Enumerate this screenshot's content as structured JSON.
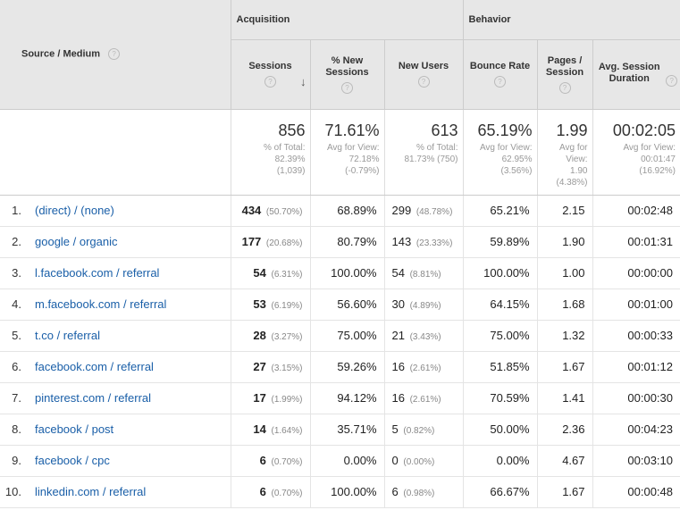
{
  "header": {
    "source_medium": "Source / Medium",
    "groups": {
      "acquisition": "Acquisition",
      "behavior": "Behavior"
    },
    "columns": {
      "sessions": "Sessions",
      "new_sessions": "% New Sessions",
      "new_users": "New Users",
      "bounce_rate": "Bounce Rate",
      "pages_session": "Pages / Session",
      "avg_duration": "Avg. Session Duration"
    },
    "help_glyph": "?",
    "sort_glyph": "↓"
  },
  "totals": {
    "sessions": {
      "value": "856",
      "sub1": "% of Total:",
      "sub2": "82.39%",
      "sub3": "(1,039)"
    },
    "new_sessions": {
      "value": "71.61%",
      "sub1": "Avg for View:",
      "sub2": "72.18%",
      "sub3": "(-0.79%)"
    },
    "new_users": {
      "value": "613",
      "sub1": "% of Total:",
      "sub2": "81.73% (750)"
    },
    "bounce_rate": {
      "value": "65.19%",
      "sub1": "Avg for View:",
      "sub2": "62.95%",
      "sub3": "(3.56%)"
    },
    "pages_session": {
      "value": "1.99",
      "sub1": "Avg for",
      "sub2": "View:",
      "sub3": "1.90",
      "sub4": "(4.38%)"
    },
    "avg_duration": {
      "value": "00:02:05",
      "sub1": "Avg for View:",
      "sub2": "00:01:47",
      "sub3": "(16.92%)"
    }
  },
  "rows": [
    {
      "index": "1.",
      "source": "(direct) / (none)",
      "sessions": "434",
      "sessions_pct": "(50.70%)",
      "new_sessions": "68.89%",
      "new_users": "299",
      "new_users_pct": "(48.78%)",
      "bounce_rate": "65.21%",
      "pages_session": "2.15",
      "avg_duration": "00:02:48"
    },
    {
      "index": "2.",
      "source": "google / organic",
      "sessions": "177",
      "sessions_pct": "(20.68%)",
      "new_sessions": "80.79%",
      "new_users": "143",
      "new_users_pct": "(23.33%)",
      "bounce_rate": "59.89%",
      "pages_session": "1.90",
      "avg_duration": "00:01:31"
    },
    {
      "index": "3.",
      "source": "l.facebook.com / referral",
      "sessions": "54",
      "sessions_pct": "(6.31%)",
      "new_sessions": "100.00%",
      "new_users": "54",
      "new_users_pct": "(8.81%)",
      "bounce_rate": "100.00%",
      "pages_session": "1.00",
      "avg_duration": "00:00:00"
    },
    {
      "index": "4.",
      "source": "m.facebook.com / referral",
      "sessions": "53",
      "sessions_pct": "(6.19%)",
      "new_sessions": "56.60%",
      "new_users": "30",
      "new_users_pct": "(4.89%)",
      "bounce_rate": "64.15%",
      "pages_session": "1.68",
      "avg_duration": "00:01:00"
    },
    {
      "index": "5.",
      "source": "t.co / referral",
      "sessions": "28",
      "sessions_pct": "(3.27%)",
      "new_sessions": "75.00%",
      "new_users": "21",
      "new_users_pct": "(3.43%)",
      "bounce_rate": "75.00%",
      "pages_session": "1.32",
      "avg_duration": "00:00:33"
    },
    {
      "index": "6.",
      "source": "facebook.com / referral",
      "sessions": "27",
      "sessions_pct": "(3.15%)",
      "new_sessions": "59.26%",
      "new_users": "16",
      "new_users_pct": "(2.61%)",
      "bounce_rate": "51.85%",
      "pages_session": "1.67",
      "avg_duration": "00:01:12"
    },
    {
      "index": "7.",
      "source": "pinterest.com / referral",
      "sessions": "17",
      "sessions_pct": "(1.99%)",
      "new_sessions": "94.12%",
      "new_users": "16",
      "new_users_pct": "(2.61%)",
      "bounce_rate": "70.59%",
      "pages_session": "1.41",
      "avg_duration": "00:00:30"
    },
    {
      "index": "8.",
      "source": "facebook / post",
      "sessions": "14",
      "sessions_pct": "(1.64%)",
      "new_sessions": "35.71%",
      "new_users": "5",
      "new_users_pct": "(0.82%)",
      "bounce_rate": "50.00%",
      "pages_session": "2.36",
      "avg_duration": "00:04:23"
    },
    {
      "index": "9.",
      "source": "facebook / cpc",
      "sessions": "6",
      "sessions_pct": "(0.70%)",
      "new_sessions": "0.00%",
      "new_users": "0",
      "new_users_pct": "(0.00%)",
      "bounce_rate": "0.00%",
      "pages_session": "4.67",
      "avg_duration": "00:03:10"
    },
    {
      "index": "10.",
      "source": "linkedin.com / referral",
      "sessions": "6",
      "sessions_pct": "(0.70%)",
      "new_sessions": "100.00%",
      "new_users": "6",
      "new_users_pct": "(0.98%)",
      "bounce_rate": "66.67%",
      "pages_session": "1.67",
      "avg_duration": "00:00:48"
    }
  ]
}
